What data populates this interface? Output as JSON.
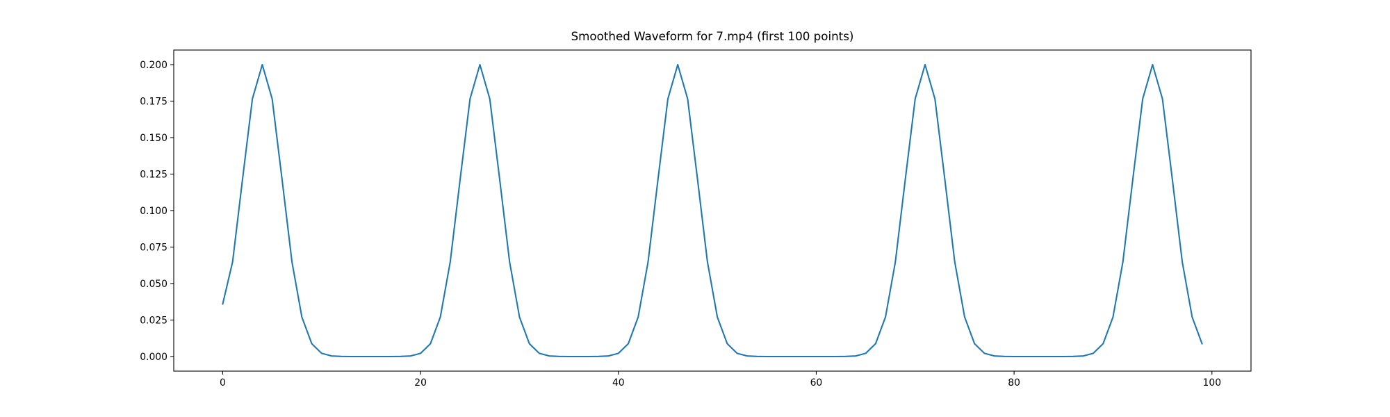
{
  "chart_data": {
    "type": "line",
    "title": "Smoothed Waveform for 7.mp4 (first 100 points)",
    "x": [
      0,
      1,
      2,
      3,
      4,
      5,
      6,
      7,
      8,
      9,
      10,
      11,
      12,
      13,
      14,
      15,
      16,
      17,
      18,
      19,
      20,
      21,
      22,
      23,
      24,
      25,
      26,
      27,
      28,
      29,
      30,
      31,
      32,
      33,
      34,
      35,
      36,
      37,
      38,
      39,
      40,
      41,
      42,
      43,
      44,
      45,
      46,
      47,
      48,
      49,
      50,
      51,
      52,
      53,
      54,
      55,
      56,
      57,
      58,
      59,
      60,
      61,
      62,
      63,
      64,
      65,
      66,
      67,
      68,
      69,
      70,
      71,
      72,
      73,
      74,
      75,
      76,
      77,
      78,
      79,
      80,
      81,
      82,
      83,
      84,
      85,
      86,
      87,
      88,
      89,
      90,
      91,
      92,
      93,
      94,
      95,
      96,
      97,
      98,
      99
    ],
    "series": [
      {
        "color": "#1f77b4",
        "values": [
          0.036,
          0.0649,
          0.1213,
          0.1765,
          0.2,
          0.1765,
          0.1213,
          0.0649,
          0.0271,
          0.0088,
          0.0022,
          0.0004,
          0.0001,
          0,
          0,
          0,
          0,
          0,
          0.0001,
          0.0004,
          0.0022,
          0.0088,
          0.0271,
          0.0649,
          0.1213,
          0.1765,
          0.2,
          0.1765,
          0.1213,
          0.0649,
          0.0271,
          0.0088,
          0.0022,
          0.0004,
          0.0001,
          0,
          0,
          0,
          0.0001,
          0.0004,
          0.0022,
          0.0088,
          0.0271,
          0.0649,
          0.1213,
          0.1765,
          0.2,
          0.1765,
          0.1213,
          0.0649,
          0.0271,
          0.0088,
          0.0022,
          0.0004,
          0.0001,
          0,
          0,
          0,
          0,
          0,
          0,
          0,
          0,
          0.0001,
          0.0004,
          0.0022,
          0.0088,
          0.0271,
          0.0649,
          0.1213,
          0.1765,
          0.2,
          0.1765,
          0.1213,
          0.0649,
          0.0271,
          0.0088,
          0.0022,
          0.0004,
          0.0001,
          0,
          0,
          0,
          0,
          0,
          0,
          0.0001,
          0.0004,
          0.0022,
          0.0088,
          0.0271,
          0.0649,
          0.1213,
          0.1765,
          0.2,
          0.1765,
          0.1213,
          0.0649,
          0.0271,
          0.0088
        ]
      }
    ],
    "xlim": [
      -4.95,
      103.95
    ],
    "xticks": [
      0,
      20,
      40,
      60,
      80,
      100
    ],
    "ylim": [
      -0.01,
      0.21
    ],
    "yticks": [
      {
        "value": 0,
        "label": "0.000"
      },
      {
        "value": 0.025,
        "label": "0.025"
      },
      {
        "value": 0.05,
        "label": "0.050"
      },
      {
        "value": 0.075,
        "label": "0.075"
      },
      {
        "value": 0.1,
        "label": "0.100"
      },
      {
        "value": 0.125,
        "label": "0.125"
      },
      {
        "value": 0.15,
        "label": "0.150"
      },
      {
        "value": 0.175,
        "label": "0.175"
      },
      {
        "value": 0.2,
        "label": "0.200"
      }
    ],
    "grid": false
  }
}
